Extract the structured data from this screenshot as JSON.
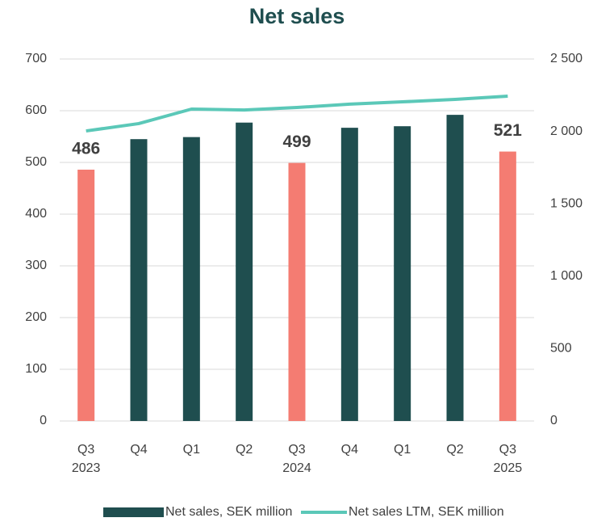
{
  "chart_data": {
    "type": "bar_line",
    "title": "Net sales",
    "categories": [
      [
        "Q3",
        "2023"
      ],
      [
        "Q4"
      ],
      [
        "Q1"
      ],
      [
        "Q2"
      ],
      [
        "Q3",
        "2024"
      ],
      [
        "Q4"
      ],
      [
        "Q1"
      ],
      [
        "Q2"
      ],
      [
        "Q3",
        "2025"
      ]
    ],
    "series": [
      {
        "name": "Net sales, SEK million",
        "type": "bar",
        "color": "#1f4e4f",
        "colors": [
          "#f47c72",
          "#1f4e4f",
          "#1f4e4f",
          "#1f4e4f",
          "#f47c72",
          "#1f4e4f",
          "#1f4e4f",
          "#1f4e4f",
          "#f47c72"
        ],
        "values": [
          486,
          545,
          549,
          577,
          499,
          567,
          570,
          592,
          521
        ],
        "value_labels": [
          "486",
          null,
          null,
          null,
          "499",
          null,
          null,
          null,
          "521"
        ]
      },
      {
        "name": "Net sales LTM, SEK million",
        "type": "line",
        "axis": "y2",
        "color": "#5bc8b8",
        "values": [
          2003,
          2054,
          2154,
          2148,
          2165,
          2188,
          2204,
          2221,
          2243
        ]
      }
    ],
    "ylim": [
      0,
      700
    ],
    "yticks": [
      0,
      100,
      200,
      300,
      400,
      500,
      600,
      700
    ],
    "y2lim": [
      0,
      2500
    ],
    "y2ticks": [
      0,
      500,
      {
        "value": 1000,
        "label": "1 000"
      },
      {
        "value": 1500,
        "label": "1 500"
      },
      {
        "value": 2000,
        "label": "2 000"
      },
      {
        "value": 2500,
        "label": "2 500"
      }
    ],
    "grid": true,
    "legend": "bottom"
  }
}
